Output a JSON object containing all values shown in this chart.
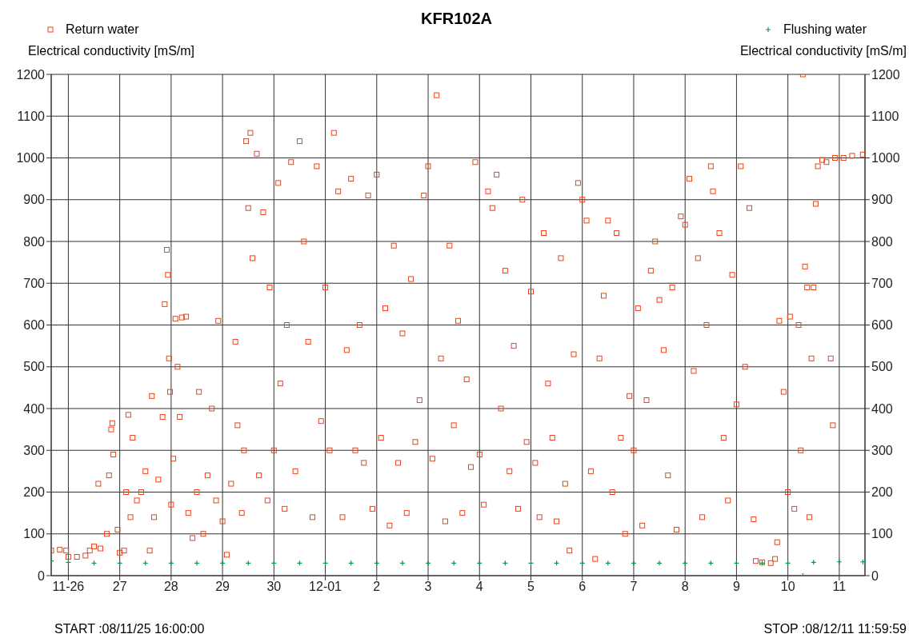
{
  "chart_data": {
    "type": "scatter",
    "title": "KFR102A",
    "ylabel": "Electrical conductivity [mS/m]",
    "y2label": "Electrical conductivity [mS/m]",
    "legend": "top",
    "grid": true,
    "xlim": [
      "--11-25T16:00",
      "--12-11T12:00"
    ],
    "xticks": [
      {
        "value": "--11-26",
        "label": "11-26"
      },
      {
        "value": "--11-27",
        "label": "27"
      },
      {
        "value": "--11-28",
        "label": "28"
      },
      {
        "value": "--11-29",
        "label": "29"
      },
      {
        "value": "--11-30",
        "label": "30"
      },
      {
        "value": "--12-01",
        "label": "12-01"
      },
      {
        "value": "--12-02",
        "label": "2"
      },
      {
        "value": "--12-03",
        "label": "3"
      },
      {
        "value": "--12-04",
        "label": "4"
      },
      {
        "value": "--12-05",
        "label": "5"
      },
      {
        "value": "--12-06",
        "label": "6"
      },
      {
        "value": "--12-07",
        "label": "7"
      },
      {
        "value": "--12-08",
        "label": "8"
      },
      {
        "value": "--12-09",
        "label": "9"
      },
      {
        "value": "--12-10",
        "label": "10"
      },
      {
        "value": "--12-11",
        "label": "11"
      }
    ],
    "ylim": [
      0,
      1200
    ],
    "yticks": [
      0,
      100,
      200,
      300,
      400,
      500,
      600,
      700,
      800,
      900,
      1000,
      1100,
      1200
    ],
    "y2lim": [
      0,
      1200
    ],
    "y2ticks": [
      0,
      100,
      200,
      300,
      400,
      500,
      600,
      700,
      800,
      900,
      1000,
      1100,
      1200
    ],
    "annotations": [
      "START :08/11/25 16:00:00",
      "STOP :08/12/11 11:59:59"
    ],
    "series": [
      {
        "name": "Return water",
        "color": "#e8441c",
        "marker": "square",
        "x": [
          "--11-25T16:00",
          "--11-25T20:00",
          "--11-25T23:00",
          "--11-26T00:00",
          "--11-26T04:00",
          "--11-26T08:00",
          "--11-26T10:00",
          "--11-26T12:00",
          "--11-26T14:00",
          "--11-26T15:00",
          "--11-26T18:00",
          "--11-26T19:00",
          "--11-26T20:00",
          "--11-26T20:30",
          "--11-26T21:00",
          "--11-26T23:00",
          "--11-27T00:00",
          "--11-27T02:00",
          "--11-27T03:00",
          "--11-27T04:00",
          "--11-27T05:00",
          "--11-27T06:00",
          "--11-27T08:00",
          "--11-27T10:00",
          "--11-27T12:00",
          "--11-27T14:00",
          "--11-27T15:00",
          "--11-27T16:00",
          "--11-27T18:00",
          "--11-27T20:00",
          "--11-27T21:00",
          "--11-27T22:00",
          "--11-27T22:30",
          "--11-27T23:00",
          "--11-27T23:30",
          "--11-28T00:00",
          "--11-28T01:00",
          "--11-28T02:00",
          "--11-28T03:00",
          "--11-28T04:00",
          "--11-28T05:00",
          "--11-28T07:00",
          "--11-28T08:00",
          "--11-28T10:00",
          "--11-28T12:00",
          "--11-28T13:00",
          "--11-28T15:00",
          "--11-28T17:00",
          "--11-28T19:00",
          "--11-28T21:00",
          "--11-28T22:00",
          "--11-29T00:00",
          "--11-29T02:00",
          "--11-29T04:00",
          "--11-29T06:00",
          "--11-29T07:00",
          "--11-29T09:00",
          "--11-29T10:00",
          "--11-29T11:00",
          "--11-29T12:00",
          "--11-29T13:00",
          "--11-29T14:00",
          "--11-29T16:00",
          "--11-29T17:00",
          "--11-29T19:00",
          "--11-29T21:00",
          "--11-29T22:00",
          "--11-30T00:00",
          "--11-30T02:00",
          "--11-30T03:00",
          "--11-30T05:00",
          "--11-30T06:00",
          "--11-30T08:00",
          "--11-30T10:00",
          "--11-30T12:00",
          "--11-30T14:00",
          "--11-30T16:00",
          "--11-30T18:00",
          "--11-30T20:00",
          "--11-30T22:00",
          "--12-01T00:00",
          "--12-01T02:00",
          "--12-01T04:00",
          "--12-01T06:00",
          "--12-01T08:00",
          "--12-01T10:00",
          "--12-01T12:00",
          "--12-01T14:00",
          "--12-01T16:00",
          "--12-01T18:00",
          "--12-01T20:00",
          "--12-01T22:00",
          "--12-02T00:00",
          "--12-02T02:00",
          "--12-02T04:00",
          "--12-02T06:00",
          "--12-02T08:00",
          "--12-02T10:00",
          "--12-02T12:00",
          "--12-02T14:00",
          "--12-02T16:00",
          "--12-02T18:00",
          "--12-02T20:00",
          "--12-02T22:00",
          "--12-03T00:00",
          "--12-03T02:00",
          "--12-03T04:00",
          "--12-03T06:00",
          "--12-03T08:00",
          "--12-03T10:00",
          "--12-03T12:00",
          "--12-03T14:00",
          "--12-03T16:00",
          "--12-03T18:00",
          "--12-03T20:00",
          "--12-03T22:00",
          "--12-04T00:00",
          "--12-04T02:00",
          "--12-04T04:00",
          "--12-04T06:00",
          "--12-04T08:00",
          "--12-04T10:00",
          "--12-04T12:00",
          "--12-04T14:00",
          "--12-04T16:00",
          "--12-04T18:00",
          "--12-04T20:00",
          "--12-04T22:00",
          "--12-05T00:00",
          "--12-05T02:00",
          "--12-05T04:00",
          "--12-05T06:00",
          "--12-05T08:00",
          "--12-05T10:00",
          "--12-05T12:00",
          "--12-05T14:00",
          "--12-05T16:00",
          "--12-05T18:00",
          "--12-05T20:00",
          "--12-05T22:00",
          "--12-06T00:00",
          "--12-06T02:00",
          "--12-06T04:00",
          "--12-06T06:00",
          "--12-06T08:00",
          "--12-06T10:00",
          "--12-06T12:00",
          "--12-06T14:00",
          "--12-06T16:00",
          "--12-06T18:00",
          "--12-06T20:00",
          "--12-06T22:00",
          "--12-07T00:00",
          "--12-07T02:00",
          "--12-07T04:00",
          "--12-07T06:00",
          "--12-07T08:00",
          "--12-07T10:00",
          "--12-07T12:00",
          "--12-07T14:00",
          "--12-07T16:00",
          "--12-07T18:00",
          "--12-07T20:00",
          "--12-07T22:00",
          "--12-08T00:00",
          "--12-08T02:00",
          "--12-08T04:00",
          "--12-08T06:00",
          "--12-08T08:00",
          "--12-08T10:00",
          "--12-08T12:00",
          "--12-08T13:00",
          "--12-08T16:00",
          "--12-08T18:00",
          "--12-08T20:00",
          "--12-08T22:00",
          "--12-09T00:00",
          "--12-09T02:00",
          "--12-09T04:00",
          "--12-09T06:00",
          "--12-09T08:00",
          "--12-09T09:00",
          "--12-09T12:00",
          "--12-09T16:00",
          "--12-09T18:00",
          "--12-09T19:00",
          "--12-09T20:00",
          "--12-09T22:00",
          "--12-10T00:00",
          "--12-10T01:00",
          "--12-10T03:00",
          "--12-10T05:00",
          "--12-10T06:00",
          "--12-10T07:00",
          "--12-10T08:00",
          "--12-10T09:00",
          "--12-10T10:00",
          "--12-10T11:00",
          "--12-10T12:00",
          "--12-10T13:00",
          "--12-10T14:00",
          "--12-10T16:00",
          "--12-10T18:00",
          "--12-10T20:00",
          "--12-10T21:00",
          "--12-10T22:00",
          "--12-11T02:00",
          "--12-11T06:00",
          "--12-11T11:00"
        ],
        "values": [
          60,
          62,
          60,
          45,
          45,
          48,
          60,
          70,
          220,
          65,
          100,
          240,
          350,
          365,
          290,
          110,
          55,
          60,
          200,
          385,
          140,
          330,
          180,
          200,
          250,
          60,
          430,
          140,
          230,
          380,
          650,
          780,
          720,
          520,
          440,
          170,
          280,
          615,
          500,
          380,
          618,
          620,
          150,
          90,
          200,
          440,
          100,
          240,
          400,
          180,
          610,
          130,
          50,
          220,
          560,
          360,
          150,
          300,
          1040,
          880,
          1060,
          760,
          1010,
          240,
          870,
          180,
          690,
          300,
          940,
          460,
          160,
          600,
          990,
          250,
          1040,
          800,
          560,
          140,
          980,
          370,
          690,
          300,
          1060,
          920,
          140,
          540,
          950,
          300,
          600,
          270,
          910,
          160,
          960,
          330,
          640,
          120,
          790,
          270,
          580,
          150,
          710,
          320,
          420,
          910,
          980,
          280,
          1150,
          520,
          130,
          790,
          360,
          610,
          150,
          470,
          260,
          990,
          290,
          170,
          920,
          880,
          960,
          400,
          730,
          250,
          550,
          160,
          900,
          320,
          680,
          270,
          140,
          820,
          460,
          330,
          130,
          760,
          220,
          60,
          530,
          940,
          900,
          850,
          250,
          40,
          520,
          670,
          850,
          200,
          820,
          330,
          100,
          430,
          300,
          640,
          120,
          420,
          730,
          800,
          660,
          540,
          240,
          690,
          110,
          860,
          840,
          950,
          490,
          760,
          140,
          600,
          980,
          920,
          820,
          330,
          180,
          720,
          410,
          980,
          500,
          880,
          135,
          35,
          32,
          30,
          40,
          80,
          610,
          440,
          200,
          620,
          160,
          600,
          300,
          1200,
          740,
          690,
          140,
          520,
          690,
          890,
          980,
          995,
          990,
          520,
          360,
          1000,
          1000,
          1005,
          1008
        ]
      },
      {
        "name": "Flushing water",
        "color": "#0a9a4a",
        "marker": "cross",
        "axis": "y2",
        "x": [
          "--11-25T16:00",
          "--11-26T00:00",
          "--11-26T12:00",
          "--11-27T00:00",
          "--11-27T12:00",
          "--11-28T00:00",
          "--11-28T12:00",
          "--11-29T00:00",
          "--11-29T12:00",
          "--11-30T00:00",
          "--11-30T12:00",
          "--12-01T00:00",
          "--12-01T12:00",
          "--12-02T00:00",
          "--12-02T12:00",
          "--12-03T00:00",
          "--12-03T12:00",
          "--12-04T00:00",
          "--12-04T12:00",
          "--12-05T00:00",
          "--12-05T12:00",
          "--12-06T00:00",
          "--12-06T12:00",
          "--12-07T00:00",
          "--12-07T12:00",
          "--12-08T00:00",
          "--12-08T12:00",
          "--12-09T00:00",
          "--12-09T12:00",
          "--12-10T00:00",
          "--12-10T07:00",
          "--12-10T12:00",
          "--12-11T00:00",
          "--12-11T11:00"
        ],
        "values": [
          35,
          32,
          30,
          30,
          30,
          30,
          30,
          30,
          30,
          30,
          30,
          30,
          30,
          30,
          30,
          30,
          30,
          30,
          30,
          30,
          30,
          30,
          30,
          30,
          30,
          30,
          30,
          30,
          30,
          30,
          0,
          32,
          33,
          33
        ]
      }
    ]
  }
}
